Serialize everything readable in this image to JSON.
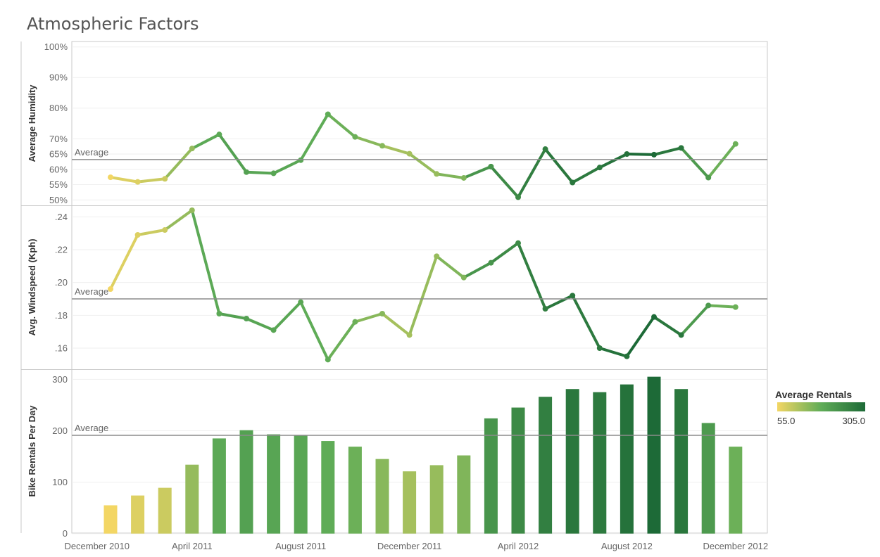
{
  "title": "Atmospheric Factors",
  "chart_data": {
    "type": "line",
    "x": [
      "2011-01",
      "2011-02",
      "2011-03",
      "2011-04",
      "2011-05",
      "2011-06",
      "2011-07",
      "2011-08",
      "2011-09",
      "2011-10",
      "2011-11",
      "2011-12",
      "2012-01",
      "2012-02",
      "2012-03",
      "2012-04",
      "2012-05",
      "2012-06",
      "2012-07",
      "2012-08",
      "2012-09",
      "2012-10",
      "2012-11",
      "2012-12"
    ],
    "x_ticks": [
      "December 2010",
      "April 2011",
      "August 2011",
      "December 2011",
      "April 2012",
      "August 2012",
      "December 2012"
    ],
    "color_metric": "rentals",
    "panels": [
      {
        "key": "humidity",
        "type": "line",
        "ylabel": "Average Humidity",
        "ylim": [
          0.48,
          1.02
        ],
        "ticks": [
          0.5,
          0.55,
          0.6,
          0.65,
          0.7,
          0.8,
          0.9,
          1.0
        ],
        "tick_labels": [
          "50%",
          "55%",
          "60%",
          "65%",
          "70%",
          "80%",
          "90%",
          "100%"
        ],
        "average": 0.632,
        "average_label": "Average",
        "values": [
          0.574,
          0.559,
          0.569,
          0.668,
          0.714,
          0.591,
          0.587,
          0.63,
          0.78,
          0.706,
          0.677,
          0.651,
          0.585,
          0.572,
          0.609,
          0.509,
          0.666,
          0.557,
          0.606,
          0.65,
          0.648,
          0.67,
          0.573,
          0.683
        ]
      },
      {
        "key": "windspeed",
        "type": "line",
        "ylabel": "Avg. Windspeed (Kph)",
        "ylim": [
          0.148,
          0.247
        ],
        "ticks": [
          0.16,
          0.18,
          0.2,
          0.22,
          0.24
        ],
        "tick_labels": [
          ".16",
          ".18",
          ".20",
          ".22",
          ".24"
        ],
        "average": 0.19,
        "average_label": "Average",
        "values": [
          0.196,
          0.229,
          0.232,
          0.244,
          0.181,
          0.178,
          0.171,
          0.188,
          0.153,
          0.176,
          0.181,
          0.168,
          0.216,
          0.203,
          0.212,
          0.224,
          0.184,
          0.192,
          0.16,
          0.155,
          0.179,
          0.168,
          0.186,
          0.185
        ]
      },
      {
        "key": "rentals",
        "type": "bar",
        "ylabel": "Bike Rentals Per Day",
        "ylim": [
          -10,
          310
        ],
        "ticks": [
          0,
          100,
          200,
          300
        ],
        "tick_labels": [
          "0",
          "100",
          "200",
          "300"
        ],
        "average": 191,
        "average_label": "Average",
        "values": [
          55,
          74,
          89,
          134,
          185,
          201,
          193,
          191,
          180,
          169,
          145,
          121,
          133,
          152,
          224,
          245,
          266,
          281,
          275,
          290,
          305,
          281,
          215,
          169
        ]
      }
    ],
    "legend": {
      "title": "Average Rentals",
      "min_label": "55.0",
      "max_label": "305.0",
      "colors": [
        "#f3d664",
        "#5fac57",
        "#1d6a37"
      ]
    }
  }
}
